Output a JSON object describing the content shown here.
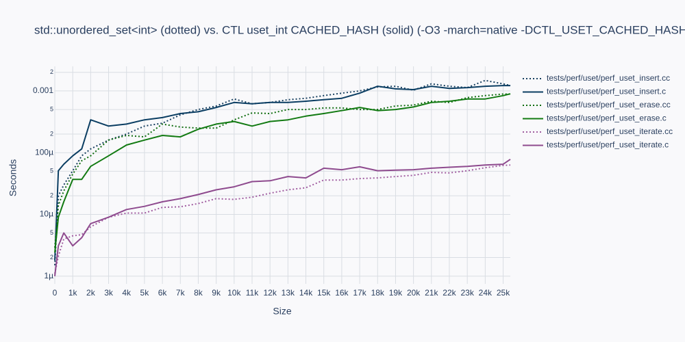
{
  "chart_data": {
    "type": "line",
    "title": "std::unordered_set<int> (dotted) vs. CTL uset_int CACHED_HASH (solid) (-O3 -march=native -DCTL_USET_CACHED_HASH",
    "x_label": "Size",
    "y_label": "Seconds",
    "log_y": true,
    "grid": true,
    "legend": "right",
    "x": [
      0,
      200,
      500,
      1000,
      1500,
      2000,
      3000,
      4000,
      5000,
      6000,
      7000,
      8000,
      9000,
      10000,
      11000,
      12000,
      13000,
      14000,
      15000,
      16000,
      17000,
      18000,
      19000,
      20000,
      21000,
      22000,
      23000,
      24000,
      25000,
      25400
    ],
    "xlim": [
      0,
      25400
    ],
    "xticks": [
      0,
      {
        "value": 1000,
        "label": "1k"
      },
      {
        "value": 2000,
        "label": "2k"
      },
      {
        "value": 3000,
        "label": "3k"
      },
      {
        "value": 4000,
        "label": "4k"
      },
      {
        "value": 5000,
        "label": "5k"
      },
      {
        "value": 6000,
        "label": "6k"
      },
      {
        "value": 7000,
        "label": "7k"
      },
      {
        "value": 8000,
        "label": "8k"
      },
      {
        "value": 9000,
        "label": "9k"
      },
      {
        "value": 10000,
        "label": "10k"
      },
      {
        "value": 11000,
        "label": "11k"
      },
      {
        "value": 12000,
        "label": "12k"
      },
      {
        "value": 13000,
        "label": "13k"
      },
      {
        "value": 14000,
        "label": "14k"
      },
      {
        "value": 15000,
        "label": "15k"
      },
      {
        "value": 16000,
        "label": "16k"
      },
      {
        "value": 17000,
        "label": "17k"
      },
      {
        "value": 18000,
        "label": "18k"
      },
      {
        "value": 19000,
        "label": "19k"
      },
      {
        "value": 20000,
        "label": "20k"
      },
      {
        "value": 21000,
        "label": "21k"
      },
      {
        "value": 22000,
        "label": "22k"
      },
      {
        "value": 23000,
        "label": "23k"
      },
      {
        "value": 24000,
        "label": "24k"
      },
      {
        "value": 25000,
        "label": "25k"
      }
    ],
    "ylim": [
      7.5e-07,
      0.0025
    ],
    "yticks": [
      {
        "value": 1e-06,
        "label": "1µ"
      },
      {
        "value": 2e-06,
        "label": "2"
      },
      {
        "value": 5e-06,
        "label": "5"
      },
      {
        "value": 1e-05,
        "label": "10µ"
      },
      {
        "value": 2e-05,
        "label": "2"
      },
      {
        "value": 5e-05,
        "label": "5"
      },
      {
        "value": 0.0001,
        "label": "100µ"
      },
      {
        "value": 0.0002,
        "label": "2"
      },
      {
        "value": 0.0005,
        "label": "5"
      },
      0.001,
      {
        "value": 0.002,
        "label": "2"
      }
    ],
    "series": [
      {
        "name": "tests/perf/uset/perf_uset_insert.cc",
        "color": "#173f5f",
        "dash": "dot",
        "values": [
          1.5e-06,
          2e-05,
          3e-05,
          5.1e-05,
          8.9e-05,
          0.000115,
          0.00016,
          0.0002,
          0.00027,
          0.0003,
          0.00041,
          0.0005,
          0.00057,
          0.00074,
          0.00062,
          0.00065,
          0.00072,
          0.00076,
          0.00084,
          0.00092,
          0.001,
          0.00116,
          0.00119,
          0.00103,
          0.0013,
          0.00119,
          0.00113,
          0.00148,
          0.0013,
          0.00122
        ]
      },
      {
        "name": "tests/perf/uset/perf_uset_insert.c",
        "color": "#0a3d62",
        "dash": "solid",
        "values": [
          1.8e-06,
          5.1e-05,
          6.5e-05,
          8.9e-05,
          0.000115,
          0.00034,
          0.00027,
          0.00029,
          0.00034,
          0.00037,
          0.00043,
          0.00046,
          0.00054,
          0.00065,
          0.00062,
          0.00065,
          0.00065,
          0.00068,
          0.00072,
          0.00076,
          0.00092,
          0.00119,
          0.00108,
          0.00105,
          0.00119,
          0.0011,
          0.00113,
          0.00119,
          0.00122,
          0.00122
        ]
      },
      {
        "name": "tests/perf/uset/perf_uset_erase.cc",
        "color": "#0d6b0d",
        "dash": "dot",
        "values": [
          2.9e-06,
          1.4e-05,
          2.4e-05,
          4.5e-05,
          7.4e-05,
          8.9e-05,
          0.00016,
          0.00019,
          0.00018,
          0.00029,
          0.00026,
          0.00025,
          0.00025,
          0.00034,
          0.00044,
          0.00043,
          0.0005,
          0.0005,
          0.00053,
          0.00053,
          0.0005,
          0.0005,
          0.00057,
          0.00059,
          0.00068,
          0.00065,
          0.00078,
          0.00084,
          0.00089,
          0.00089
        ]
      },
      {
        "name": "tests/perf/uset/perf_uset_erase.c",
        "color": "#127a12",
        "dash": "solid",
        "values": [
          2.4e-06,
          9e-06,
          1.6e-05,
          3.7e-05,
          3.7e-05,
          6e-05,
          8.9e-05,
          0.000133,
          0.00016,
          0.00019,
          0.00018,
          0.00024,
          0.00029,
          0.00032,
          0.00027,
          0.00032,
          0.00034,
          0.00039,
          0.00043,
          0.00048,
          0.00054,
          0.00048,
          0.0005,
          0.00055,
          0.00065,
          0.00068,
          0.00074,
          0.00074,
          0.00084,
          0.0009
        ]
      },
      {
        "name": "tests/perf/uset/perf_uset_iterate.cc",
        "color": "#a05ca0",
        "dash": "dot",
        "values": [
          1.1e-06,
          2.1e-06,
          4e-06,
          4.5e-06,
          4.7e-06,
          6.3e-06,
          9e-06,
          1.05e-05,
          1.05e-05,
          1.3e-05,
          1.33e-05,
          1.5e-05,
          1.8e-05,
          1.75e-05,
          1.9e-05,
          2.2e-05,
          2.5e-05,
          2.7e-05,
          3.6e-05,
          3.6e-05,
          3.8e-05,
          3.9e-05,
          4.1e-05,
          4.3e-05,
          4.8e-05,
          4.7e-05,
          5.1e-05,
          5.7e-05,
          6.2e-05,
          6.3e-05
        ]
      },
      {
        "name": "tests/perf/uset/perf_uset_iterate.c",
        "color": "#8e4a8e",
        "dash": "solid",
        "values": [
          1e-06,
          3.1e-06,
          5e-06,
          3.1e-06,
          4.2e-06,
          7.1e-06,
          9e-06,
          1.2e-05,
          1.35e-05,
          1.6e-05,
          1.8e-05,
          2.1e-05,
          2.5e-05,
          2.8e-05,
          3.4e-05,
          3.5e-05,
          4.1e-05,
          3.9e-05,
          5.6e-05,
          5.3e-05,
          5.9e-05,
          5.1e-05,
          5.2e-05,
          5.3e-05,
          5.6e-05,
          5.8e-05,
          6e-05,
          6.3e-05,
          6.5e-05,
          7.8e-05
        ]
      }
    ]
  }
}
